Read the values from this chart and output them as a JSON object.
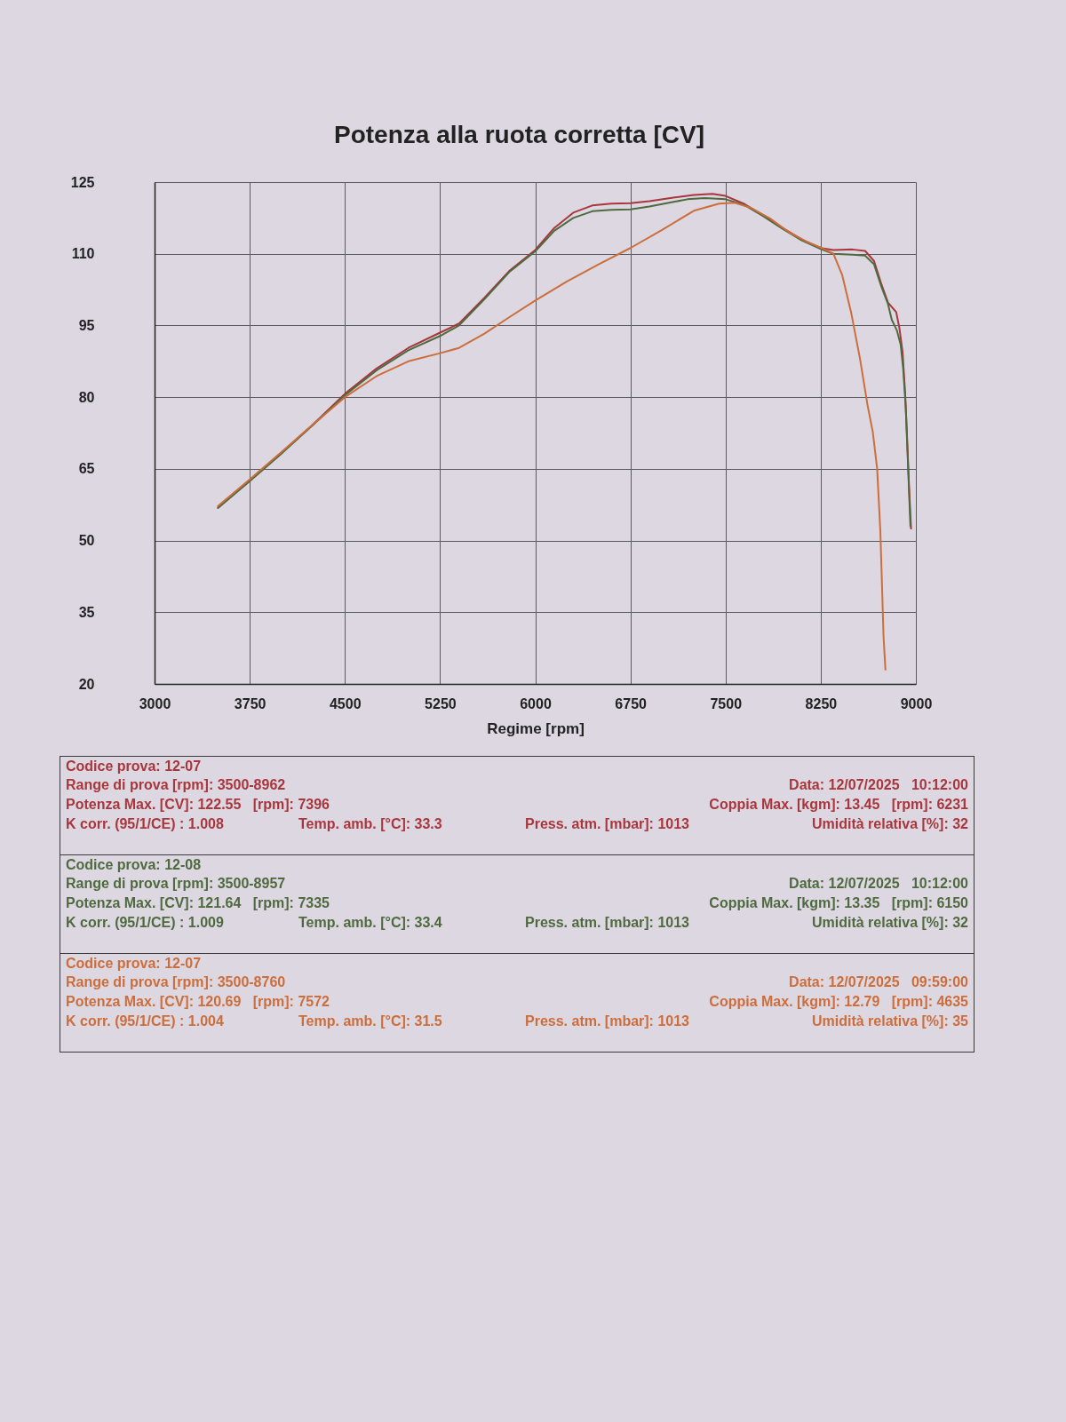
{
  "chart_data": {
    "type": "line",
    "title": "Potenza alla ruota corretta [CV]",
    "xlabel": "Regime [rpm]",
    "xlim": [
      3000,
      9000
    ],
    "ylim": [
      20,
      125
    ],
    "xticks": [
      3000,
      3750,
      4500,
      5250,
      6000,
      6750,
      7500,
      8250,
      9000
    ],
    "yticks": [
      20,
      35,
      50,
      65,
      80,
      95,
      110,
      125
    ],
    "grid": true,
    "series": [
      {
        "color": "#a8363c",
        "x": [
          3500,
          3750,
          4000,
          4250,
          4500,
          4750,
          5000,
          5250,
          5400,
          5600,
          5800,
          6000,
          6150,
          6300,
          6450,
          6600,
          6750,
          6900,
          7100,
          7250,
          7396,
          7500,
          7650,
          7800,
          7950,
          8100,
          8250,
          8350,
          8500,
          8600,
          8670,
          8730,
          8780,
          8845,
          8870,
          8895,
          8915,
          8930,
          8945,
          8962
        ],
        "values": [
          57.0,
          62.6,
          68.4,
          74.3,
          80.7,
          86.0,
          90.3,
          93.5,
          95.4,
          100.8,
          106.5,
          110.8,
          115.4,
          118.6,
          120.1,
          120.5,
          120.6,
          121.0,
          121.8,
          122.3,
          122.55,
          122.1,
          120.4,
          118.0,
          115.4,
          113.0,
          111.2,
          110.8,
          110.9,
          110.6,
          108.5,
          103.5,
          99.8,
          97.8,
          94.5,
          89.5,
          81.0,
          72.0,
          62.0,
          52.5
        ]
      },
      {
        "color": "#4e6a3e",
        "x": [
          3500,
          3750,
          4000,
          4250,
          4500,
          4750,
          5000,
          5250,
          5400,
          5600,
          5800,
          6000,
          6150,
          6300,
          6450,
          6600,
          6750,
          6900,
          7100,
          7200,
          7335,
          7500,
          7650,
          7800,
          7950,
          8100,
          8250,
          8350,
          8500,
          8600,
          8670,
          8730,
          8780,
          8810,
          8850,
          8880,
          8900,
          8920,
          8935,
          8957
        ],
        "values": [
          56.8,
          62.4,
          68.2,
          74.2,
          80.4,
          85.6,
          89.8,
          92.8,
          95.0,
          100.5,
          106.3,
          110.5,
          114.8,
          117.5,
          118.9,
          119.2,
          119.3,
          119.9,
          120.9,
          121.4,
          121.64,
          121.4,
          120.2,
          117.8,
          115.2,
          112.8,
          111.0,
          110.0,
          109.8,
          109.6,
          107.8,
          103.0,
          99.5,
          96.2,
          94.0,
          91.0,
          86.0,
          78.0,
          68.0,
          53.0
        ]
      },
      {
        "color": "#cc6e3c",
        "x": [
          3500,
          3750,
          4000,
          4250,
          4500,
          4750,
          5000,
          5250,
          5400,
          5600,
          5800,
          6000,
          6250,
          6500,
          6750,
          7000,
          7250,
          7450,
          7572,
          7700,
          7850,
          8000,
          8150,
          8250,
          8350,
          8420,
          8490,
          8560,
          8620,
          8660,
          8695,
          8720,
          8735,
          8745,
          8760
        ],
        "values": [
          57.2,
          62.8,
          68.5,
          74.3,
          80.0,
          84.4,
          87.5,
          89.2,
          90.3,
          93.3,
          96.8,
          100.2,
          104.2,
          107.8,
          111.2,
          115.0,
          119.0,
          120.5,
          120.69,
          119.6,
          117.4,
          114.5,
          112.4,
          111.3,
          110.0,
          105.5,
          97.7,
          88.0,
          78.2,
          72.8,
          65.0,
          52.0,
          39.0,
          30.0,
          23.0
        ]
      }
    ],
    "annotations": [
      "Codice prova: 12-07",
      "Range di prova [rpm]: 3500-8962",
      "Data: 12/07/2025   10:12:00",
      "Potenza Max. [CV]: 122.55   [rpm]: 7396",
      "Coppia Max. [kgm]: 13.45   [rpm]: 6231",
      "K corr. (95/1/CE) : 1.008",
      "Temp. amb. [°C]: 33.3",
      "Press. atm. [mbar]: 1013",
      "Umidità relativa [%]: 32",
      "Codice prova: 12-08",
      "Range di prova [rpm]: 3500-8957",
      "Data: 12/07/2025   10:12:00",
      "Potenza Max. [CV]: 121.64   [rpm]: 7335",
      "Coppia Max. [kgm]: 13.35   [rpm]: 6150",
      "K corr. (95/1/CE) : 1.009",
      "Temp. amb. [°C]: 33.4",
      "Press. atm. [mbar]: 1013",
      "Umidità relativa [%]: 32",
      "Codice prova: 12-07",
      "Range di prova [rpm]: 3500-8760",
      "Data: 12/07/2025   09:59:00",
      "Potenza Max. [CV]: 120.69   [rpm]: 7572",
      "Coppia Max. [kgm]: 12.79   [rpm]: 4635",
      "K corr. (95/1/CE) : 1.004",
      "Temp. amb. [°C]: 31.5",
      "Press. atm. [mbar]: 1013",
      "Umidità relativa [%]: 35"
    ]
  }
}
